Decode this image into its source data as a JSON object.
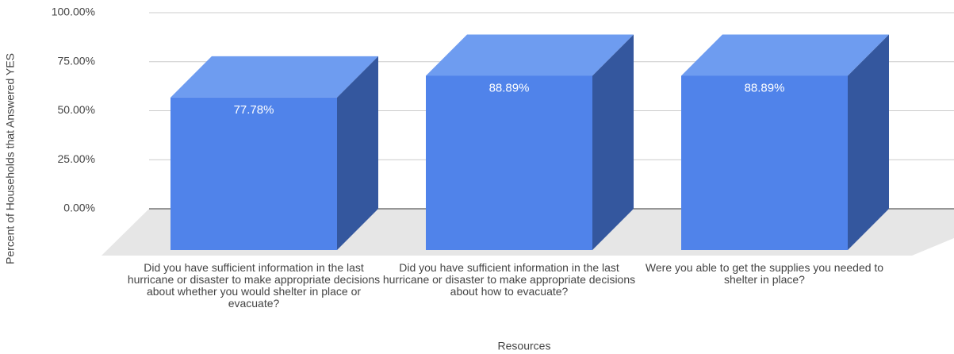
{
  "chart_data": {
    "type": "bar3d",
    "y_label": "Percent of Households that Answered YES",
    "x_label": "Resources",
    "categories": [
      "Did you have sufficient information in the last hurricane or disaster to make appropriate decisions about whether you would shelter in place or evacuate?",
      "Did you have sufficient information in the last hurricane or disaster to make appropriate decisions about how to evacuate?",
      "Were you able to get the supplies you needed to shelter in place?"
    ],
    "values": [
      77.78,
      88.89,
      88.89
    ],
    "value_labels": [
      "77.78%",
      "88.89%",
      "88.89%"
    ],
    "color": "#5083ea",
    "ylim": [
      0,
      100
    ],
    "yticks": [
      {
        "value": 0,
        "label": "0.00%"
      },
      {
        "value": 25,
        "label": "25.00%"
      },
      {
        "value": 50,
        "label": "50.00%"
      },
      {
        "value": 75,
        "label": "75.00%"
      },
      {
        "value": 100,
        "label": "100.00%"
      }
    ],
    "grid": true
  }
}
